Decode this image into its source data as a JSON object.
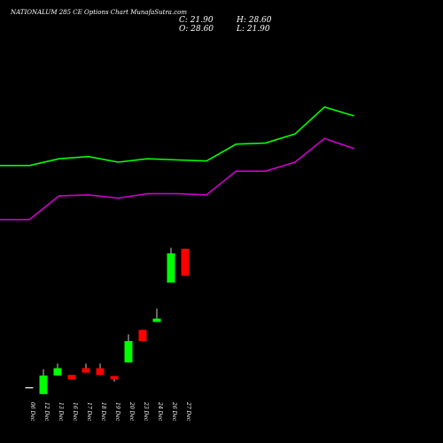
{
  "chart_data": {
    "type": "candlestick",
    "title": "NATIONALUM 285 CE Options Chart MunafaSutra.com",
    "ohlc_readout": {
      "C": "21.90",
      "H": "28.60",
      "O": "28.60",
      "L": "21.90"
    },
    "ohlc_labels": {
      "c": "C: 21.90",
      "h": "H: 28.60",
      "o": "O: 28.60",
      "l": "L: 21.90"
    },
    "categories": [
      "06 Dec",
      "12 Dec",
      "13 Dec",
      "16 Dec",
      "17 Dec",
      "18 Dec",
      "19 Dec",
      "20 Dec",
      "23 Dec",
      "24 Dec",
      "26 Dec",
      "27 Dec"
    ],
    "candles": [
      {
        "o": 0.8,
        "h": 0.8,
        "l": 0.8,
        "c": 0.8
      },
      {
        "o": 0.2,
        "h": 2.4,
        "l": 0.2,
        "c": 1.85
      },
      {
        "o": 1.85,
        "h": 2.9,
        "l": 1.85,
        "c": 2.5
      },
      {
        "o": 1.9,
        "h": 1.9,
        "l": 1.5,
        "c": 1.5
      },
      {
        "o": 2.5,
        "h": 2.9,
        "l": 2.1,
        "c": 2.1
      },
      {
        "o": 2.5,
        "h": 2.9,
        "l": 1.9,
        "c": 1.9
      },
      {
        "o": 1.8,
        "h": 1.8,
        "l": 1.3,
        "c": 1.5
      },
      {
        "o": 3.0,
        "h": 5.5,
        "l": 3.0,
        "c": 4.9
      },
      {
        "o": 5.9,
        "h": 5.9,
        "l": 4.9,
        "c": 4.9
      },
      {
        "o": 6.6,
        "h": 7.8,
        "l": 6.6,
        "c": 6.9
      },
      {
        "o": 10.1,
        "h": 13.2,
        "l": 10.1,
        "c": 12.7
      },
      {
        "o": 13.1,
        "h": 13.1,
        "l": 10.7,
        "c": 10.7
      }
    ],
    "bands": [
      {
        "color": "#00ff00",
        "points": [
          20.5,
          20.5,
          21.1,
          21.3,
          20.8,
          21.1,
          21.0,
          20.9,
          22.4,
          22.5,
          23.3,
          25.7,
          24.9
        ]
      },
      {
        "color": "#cc00cc",
        "points": [
          15.7,
          15.7,
          17.8,
          17.9,
          17.6,
          18.0,
          18.0,
          17.9,
          20.0,
          20.0,
          20.8,
          22.9,
          22.0
        ]
      }
    ],
    "up_color": "#00ff00",
    "down_color": "#ff0000",
    "neutral_color": "#ffffff",
    "ylim": [
      -1,
      33
    ]
  }
}
